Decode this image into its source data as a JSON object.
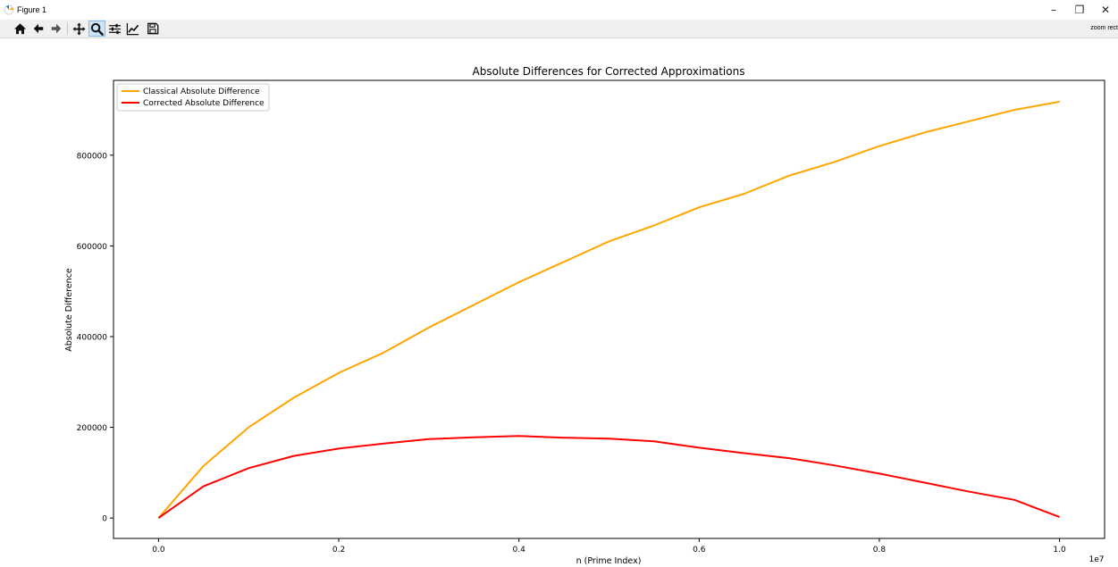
{
  "window": {
    "title": "Figure 1",
    "minimize_glyph": "–",
    "restore_glyph": "❐",
    "close_glyph": "✕"
  },
  "toolbar": {
    "buttons": [
      {
        "name": "home-icon",
        "label": "Home"
      },
      {
        "name": "back-arrow-icon",
        "label": "Back"
      },
      {
        "name": "forward-arrow-icon",
        "label": "Forward"
      },
      {
        "name": "pan-icon",
        "label": "Pan"
      },
      {
        "name": "zoom-magnifier-icon",
        "label": "Zoom",
        "active": true
      },
      {
        "name": "subplots-sliders-icon",
        "label": "Subplots"
      },
      {
        "name": "edit-axes-icon",
        "label": "Customize"
      },
      {
        "name": "save-disk-icon",
        "label": "Save"
      }
    ],
    "mode_message": "zoom rect"
  },
  "colors": {
    "classical": "#ffa500",
    "corrected": "#ff0000",
    "active_button": "#cce4f7"
  },
  "chart_data": {
    "type": "line",
    "title": "Absolute Differences for Corrected Approximations",
    "xlabel": "n (Prime Index)",
    "ylabel": "Absolute Difference",
    "x_offset_label": "1e7",
    "xlim": [
      -0.05,
      1.05
    ],
    "ylim": [
      -45000,
      965000
    ],
    "xticks": [
      0.0,
      0.2,
      0.4,
      0.6,
      0.8,
      1.0
    ],
    "xtick_labels": [
      "0.0",
      "0.2",
      "0.4",
      "0.6",
      "0.8",
      "1.0"
    ],
    "yticks": [
      0,
      200000,
      400000,
      600000,
      800000
    ],
    "ytick_labels": [
      "0",
      "200000",
      "400000",
      "600000",
      "800000"
    ],
    "grid": false,
    "legend_position": "upper-left",
    "x": [
      0.0,
      0.05,
      0.1,
      0.15,
      0.2,
      0.25,
      0.3,
      0.35,
      0.4,
      0.45,
      0.5,
      0.55,
      0.6,
      0.65,
      0.7,
      0.75,
      0.8,
      0.85,
      0.9,
      0.95,
      1.0
    ],
    "series": [
      {
        "name": "Classical Absolute Difference",
        "values": [
          0,
          115000,
          200000,
          265000,
          320000,
          365000,
          420000,
          470000,
          520000,
          565000,
          610000,
          645000,
          685000,
          715000,
          755000,
          785000,
          820000,
          850000,
          875000,
          900000,
          918000
        ]
      },
      {
        "name": "Corrected Absolute Difference",
        "values": [
          0,
          70000,
          110000,
          137000,
          153000,
          164000,
          174000,
          178000,
          181000,
          177000,
          175000,
          169000,
          155000,
          143000,
          132000,
          116000,
          98000,
          78000,
          58000,
          40000,
          2000
        ]
      }
    ]
  }
}
